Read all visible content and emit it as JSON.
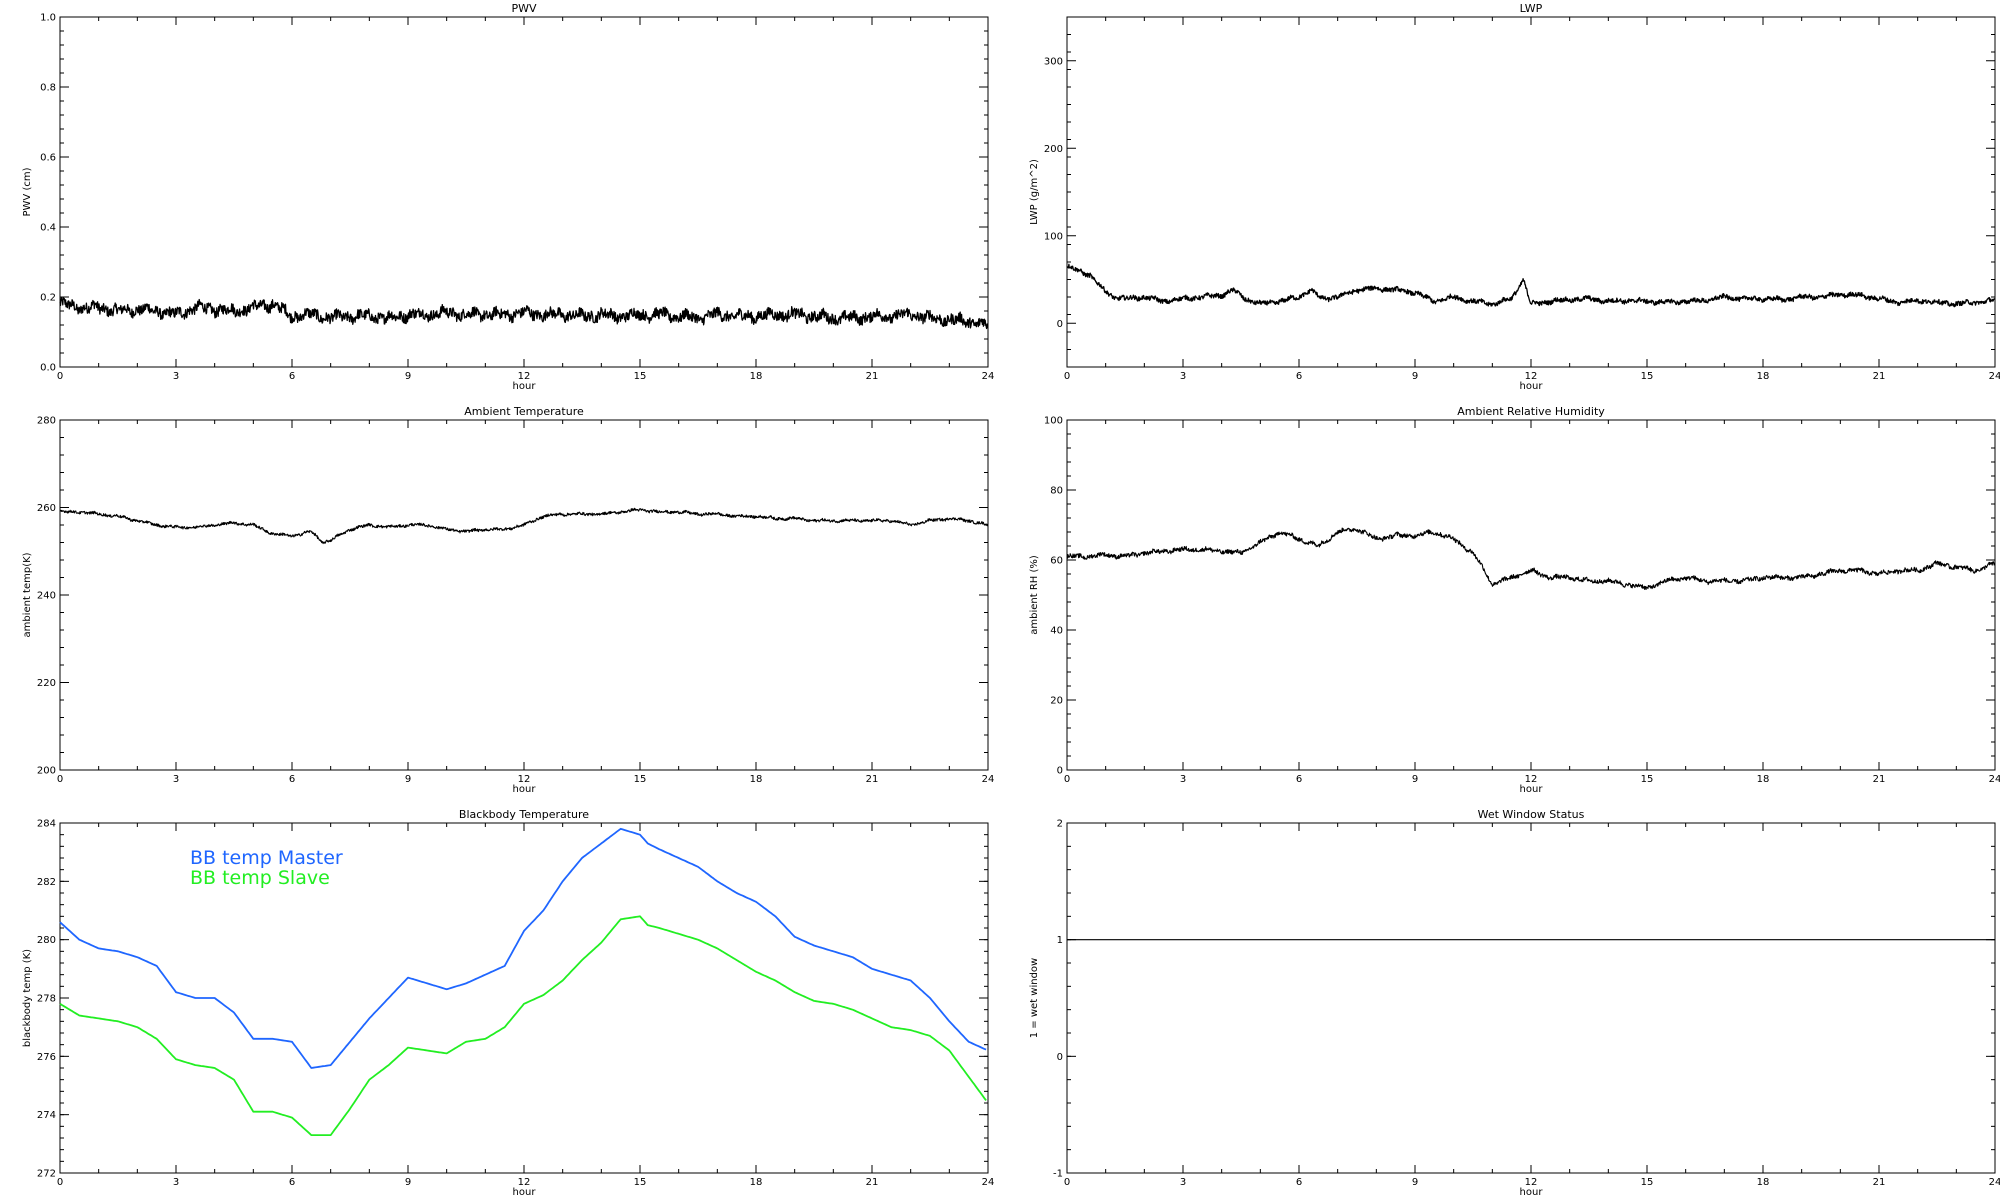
{
  "chart_data": [
    {
      "type": "line",
      "title": "PWV",
      "xlabel": "hour",
      "ylabel": "PWV (cm)",
      "xlim": [
        0,
        24
      ],
      "ylim": [
        0,
        1.0
      ],
      "xticks": [
        "0",
        "3",
        "6",
        "9",
        "12",
        "15",
        "18",
        "21",
        "24"
      ],
      "yticks": [
        "0.0",
        "0.2",
        "0.4",
        "0.6",
        "0.8",
        "1.0"
      ],
      "style": "noisy-thick",
      "noise": 0.015,
      "series": [
        {
          "color": "#000000",
          "x": [
            0,
            0.5,
            1,
            1.5,
            2,
            2.5,
            3,
            3.5,
            4,
            4.5,
            5,
            5.5,
            6,
            6.5,
            7,
            7.5,
            8,
            8.5,
            9,
            9.5,
            10,
            10.5,
            11,
            11.5,
            12,
            12.5,
            13,
            13.5,
            14,
            14.5,
            15,
            15.5,
            16,
            16.5,
            17,
            17.5,
            18,
            18.5,
            19,
            19.5,
            20,
            20.5,
            21,
            21.5,
            22,
            22.5,
            23,
            23.5,
            24
          ],
          "y": [
            0.18,
            0.17,
            0.17,
            0.16,
            0.165,
            0.16,
            0.15,
            0.17,
            0.165,
            0.16,
            0.17,
            0.18,
            0.145,
            0.15,
            0.14,
            0.145,
            0.145,
            0.14,
            0.15,
            0.15,
            0.155,
            0.15,
            0.15,
            0.15,
            0.155,
            0.15,
            0.15,
            0.145,
            0.15,
            0.145,
            0.15,
            0.15,
            0.145,
            0.14,
            0.15,
            0.145,
            0.145,
            0.15,
            0.15,
            0.145,
            0.14,
            0.14,
            0.145,
            0.145,
            0.15,
            0.14,
            0.135,
            0.13,
            0.12
          ]
        }
      ]
    },
    {
      "type": "line",
      "title": "LWP",
      "xlabel": "hour",
      "ylabel": "LWP (g/m^2)",
      "xlim": [
        0,
        24
      ],
      "ylim": [
        -50,
        350
      ],
      "xticks": [
        "0",
        "3",
        "6",
        "9",
        "12",
        "15",
        "18",
        "21",
        "24"
      ],
      "yticks": [
        "0",
        "100",
        "200",
        "300"
      ],
      "ytickvals": [
        0,
        100,
        200,
        300
      ],
      "style": "noisy-thick",
      "noise": 2.5,
      "series": [
        {
          "color": "#000000",
          "x": [
            0,
            0.3,
            0.6,
            0.9,
            1.2,
            1.5,
            2,
            2.5,
            3,
            3.5,
            4,
            4.3,
            4.6,
            5,
            5.5,
            6,
            6.3,
            6.6,
            7,
            7.5,
            8,
            8.5,
            9,
            9.5,
            10,
            10.5,
            11,
            11.5,
            11.8,
            12,
            12.5,
            13,
            13.5,
            14,
            14.5,
            15,
            15.5,
            16,
            16.5,
            17,
            17.5,
            18,
            18.5,
            19,
            19.5,
            20,
            20.5,
            21,
            21.5,
            22,
            22.5,
            23,
            23.5,
            24
          ],
          "y": [
            65,
            60,
            55,
            40,
            30,
            28,
            30,
            25,
            28,
            30,
            32,
            38,
            28,
            22,
            25,
            30,
            38,
            28,
            30,
            38,
            40,
            38,
            35,
            25,
            30,
            25,
            22,
            28,
            50,
            22,
            25,
            27,
            28,
            25,
            26,
            25,
            24,
            25,
            26,
            30,
            28,
            28,
            27,
            30,
            30,
            33,
            32,
            28,
            24,
            26,
            24,
            22,
            24,
            26
          ]
        }
      ]
    },
    {
      "type": "line",
      "title": "Ambient Temperature",
      "xlabel": "hour",
      "ylabel": "ambient temp(K)",
      "xlim": [
        0,
        24
      ],
      "ylim": [
        200,
        280
      ],
      "xticks": [
        "0",
        "3",
        "6",
        "9",
        "12",
        "15",
        "18",
        "21",
        "24"
      ],
      "yticks": [
        "200",
        "220",
        "240",
        "260",
        "280"
      ],
      "ytickvals": [
        200,
        220,
        240,
        260,
        280
      ],
      "style": "thin",
      "noise": 0.3,
      "series": [
        {
          "color": "#000000",
          "x": [
            0,
            0.5,
            1,
            1.5,
            2,
            2.5,
            3,
            3.5,
            4,
            4.5,
            5,
            5.5,
            6,
            6.5,
            6.8,
            7,
            7.5,
            8,
            8.5,
            9,
            9.5,
            10,
            10.5,
            11,
            11.5,
            12,
            12.5,
            13,
            13.5,
            14,
            14.5,
            15,
            15.5,
            16,
            16.5,
            17,
            17.5,
            18,
            18.5,
            19,
            19.5,
            20,
            20.5,
            21,
            21.5,
            22,
            22.5,
            23,
            23.5,
            24
          ],
          "y": [
            259,
            259,
            258.5,
            258,
            257,
            256,
            255.5,
            255.5,
            256,
            256.5,
            256,
            254,
            253.5,
            254.5,
            252,
            252.5,
            255,
            256,
            255.5,
            256,
            256,
            255,
            254.5,
            255,
            255,
            256,
            258,
            258.5,
            258.5,
            258.5,
            259,
            259.5,
            259,
            259,
            258.5,
            258.5,
            258,
            258,
            257.5,
            257.5,
            257,
            257,
            257,
            257,
            257,
            256,
            257,
            257.5,
            257,
            256
          ]
        }
      ]
    },
    {
      "type": "line",
      "title": "Ambient Relative Humidity",
      "xlabel": "hour",
      "ylabel": "ambient RH (%)",
      "xlim": [
        0,
        24
      ],
      "ylim": [
        0,
        100
      ],
      "xticks": [
        "0",
        "3",
        "6",
        "9",
        "12",
        "15",
        "18",
        "21",
        "24"
      ],
      "yticks": [
        "0",
        "20",
        "40",
        "60",
        "80",
        "100"
      ],
      "ytickvals": [
        0,
        20,
        40,
        60,
        80,
        100
      ],
      "style": "thin",
      "noise": 0.6,
      "series": [
        {
          "color": "#000000",
          "x": [
            0,
            0.5,
            1,
            1.5,
            2,
            2.5,
            3,
            3.5,
            4,
            4.5,
            5,
            5.5,
            6,
            6.5,
            7,
            7.5,
            8,
            8.5,
            9,
            9.5,
            10,
            10.5,
            10.8,
            11,
            11.5,
            12,
            12.5,
            13,
            13.5,
            14,
            14.5,
            15,
            15.5,
            16,
            16.5,
            17,
            17.5,
            18,
            18.5,
            19,
            19.5,
            20,
            20.5,
            21,
            21.5,
            22,
            22.5,
            23,
            23.5,
            24
          ],
          "y": [
            61,
            61,
            61.5,
            61,
            62,
            62.5,
            63,
            63,
            62.5,
            62,
            65,
            68,
            66,
            64,
            68,
            69,
            66,
            67,
            67,
            68,
            66,
            62,
            57,
            53,
            55,
            57,
            55,
            55,
            54,
            54,
            53,
            52,
            54,
            55,
            54,
            54,
            54,
            55,
            55,
            55,
            56,
            57,
            57,
            56,
            57,
            57,
            59,
            58,
            57,
            59
          ]
        }
      ]
    },
    {
      "type": "line",
      "title": "Blackbody Temperature",
      "xlabel": "hour",
      "ylabel": "blackbody temp (K)",
      "xlim": [
        0,
        24
      ],
      "ylim": [
        272,
        284
      ],
      "xticks": [
        "0",
        "3",
        "6",
        "9",
        "12",
        "15",
        "18",
        "21",
        "24"
      ],
      "yticks": [
        "272",
        "274",
        "276",
        "278",
        "280",
        "282",
        "284"
      ],
      "ytickvals": [
        272,
        274,
        276,
        278,
        280,
        282,
        284
      ],
      "style": "smooth",
      "noise": 0,
      "legend": [
        "BB temp Master",
        "BB temp Slave"
      ],
      "series": [
        {
          "name": "BB temp Master",
          "color": "#1f66ff",
          "x": [
            0,
            0.5,
            1,
            1.5,
            2,
            2.5,
            3,
            3.5,
            4,
            4.5,
            5,
            5.5,
            6,
            6.5,
            7,
            7.5,
            8,
            8.5,
            9,
            9.5,
            10,
            10.5,
            11,
            11.5,
            12,
            12.5,
            13,
            13.5,
            14,
            14.5,
            15,
            15.2,
            15.5,
            16,
            16.5,
            17,
            17.5,
            18,
            18.5,
            19,
            19.5,
            20,
            20.5,
            21,
            21.5,
            22,
            22.5,
            23,
            23.5,
            24
          ],
          "y": [
            280.6,
            280,
            279.7,
            279.6,
            279.4,
            279.1,
            278.2,
            278,
            278,
            277.5,
            276.6,
            276.6,
            276.5,
            275.6,
            275.7,
            276.5,
            277.3,
            278,
            278.7,
            278.5,
            278.3,
            278.5,
            278.8,
            279.1,
            280.3,
            281,
            282,
            282.8,
            283.3,
            283.8,
            283.6,
            283.3,
            283.1,
            282.8,
            282.5,
            282,
            281.6,
            281.3,
            280.8,
            280.1,
            279.8,
            279.6,
            279.4,
            279.0,
            278.8,
            278.6,
            278.0,
            277.2,
            276.5,
            276.2
          ]
        },
        {
          "name": "BB temp Slave",
          "color": "#22ee22",
          "x": [
            0,
            0.5,
            1,
            1.5,
            2,
            2.5,
            3,
            3.5,
            4,
            4.5,
            5,
            5.5,
            6,
            6.5,
            7,
            7.5,
            8,
            8.5,
            9,
            9.5,
            10,
            10.5,
            11,
            11.5,
            12,
            12.5,
            13,
            13.5,
            14,
            14.5,
            15,
            15.2,
            15.5,
            16,
            16.5,
            17,
            17.5,
            18,
            18.5,
            19,
            19.5,
            20,
            20.5,
            21,
            21.5,
            22,
            22.5,
            23,
            23.5,
            24
          ],
          "y": [
            277.8,
            277.4,
            277.3,
            277.2,
            277,
            276.6,
            275.9,
            275.7,
            275.6,
            275.2,
            274.1,
            274.1,
            273.9,
            273.3,
            273.3,
            274.2,
            275.2,
            275.7,
            276.3,
            276.2,
            276.1,
            276.5,
            276.6,
            277,
            277.8,
            278.1,
            278.6,
            279.3,
            279.9,
            280.7,
            280.8,
            280.5,
            280.4,
            280.2,
            280.0,
            279.7,
            279.3,
            278.9,
            278.6,
            278.2,
            277.9,
            277.8,
            277.6,
            277.3,
            277.0,
            276.9,
            276.7,
            276.2,
            275.3,
            274.4
          ]
        }
      ]
    },
    {
      "type": "line",
      "title": "Wet Window Status",
      "xlabel": "hour",
      "ylabel": "1 = wet window",
      "xlim": [
        0,
        24
      ],
      "ylim": [
        -1,
        2
      ],
      "xticks": [
        "0",
        "3",
        "6",
        "9",
        "12",
        "15",
        "18",
        "21",
        "24"
      ],
      "yticks": [
        "-1",
        "0",
        "1",
        "2"
      ],
      "ytickvals": [
        -1,
        0,
        1,
        2
      ],
      "style": "thin",
      "noise": 0,
      "series": [
        {
          "color": "#000000",
          "x": [
            0,
            24
          ],
          "y": [
            1,
            1
          ]
        }
      ]
    }
  ]
}
